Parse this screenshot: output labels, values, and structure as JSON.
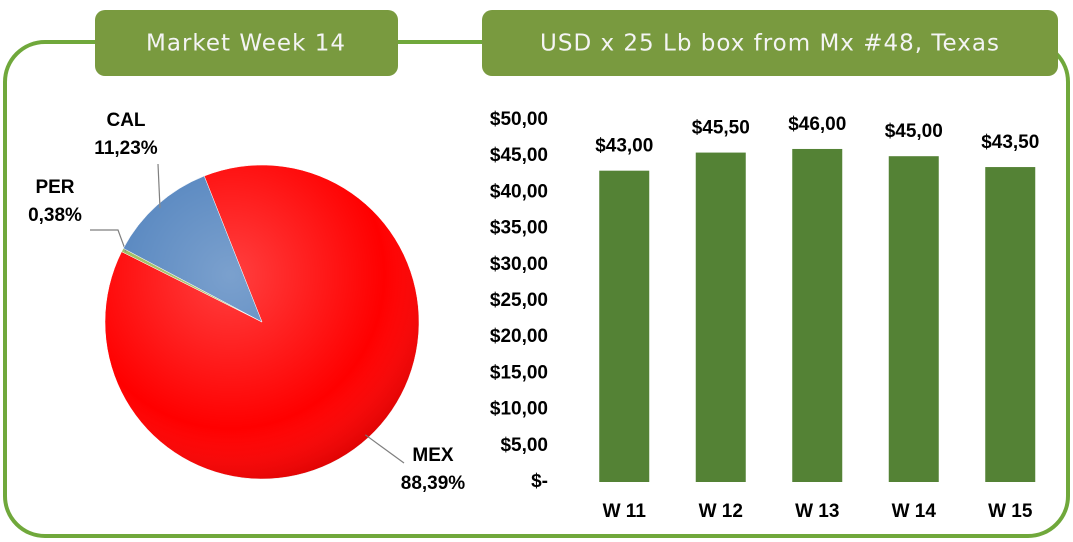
{
  "chart_data": [
    {
      "type": "pie",
      "title": "Market Week 14",
      "categories": [
        "MEX",
        "PER",
        "CAL"
      ],
      "values": [
        88.39,
        0.38,
        11.23
      ],
      "value_labels": [
        "88,39%",
        "0,38%",
        "11,23%"
      ],
      "colors": [
        "#ff0000",
        "#9bbb59",
        "#4f81bd"
      ]
    },
    {
      "type": "bar",
      "title": "USD x 25 Lb box from Mx #48, Texas",
      "categories": [
        "W 11",
        "W 12",
        "W 13",
        "W 14",
        "W 15"
      ],
      "values": [
        43,
        45.5,
        46,
        45,
        43.5
      ],
      "value_labels": [
        "$43,00",
        "$45,50",
        "$46,00",
        "$45,00",
        "$43,50"
      ],
      "color": "#548235",
      "ylim": [
        0,
        50
      ],
      "yticks": [
        {
          "value": 0,
          "label": "$-"
        },
        {
          "value": 5,
          "label": "$5,00"
        },
        {
          "value": 10,
          "label": "$10,00"
        },
        {
          "value": 15,
          "label": "$15,00"
        },
        {
          "value": 20,
          "label": "$20,00"
        },
        {
          "value": 25,
          "label": "$25,00"
        },
        {
          "value": 30,
          "label": "$30,00"
        },
        {
          "value": 35,
          "label": "$35,00"
        },
        {
          "value": 40,
          "label": "$40,00"
        },
        {
          "value": 45,
          "label": "$45,00"
        },
        {
          "value": 50,
          "label": "$50,00"
        }
      ]
    }
  ]
}
